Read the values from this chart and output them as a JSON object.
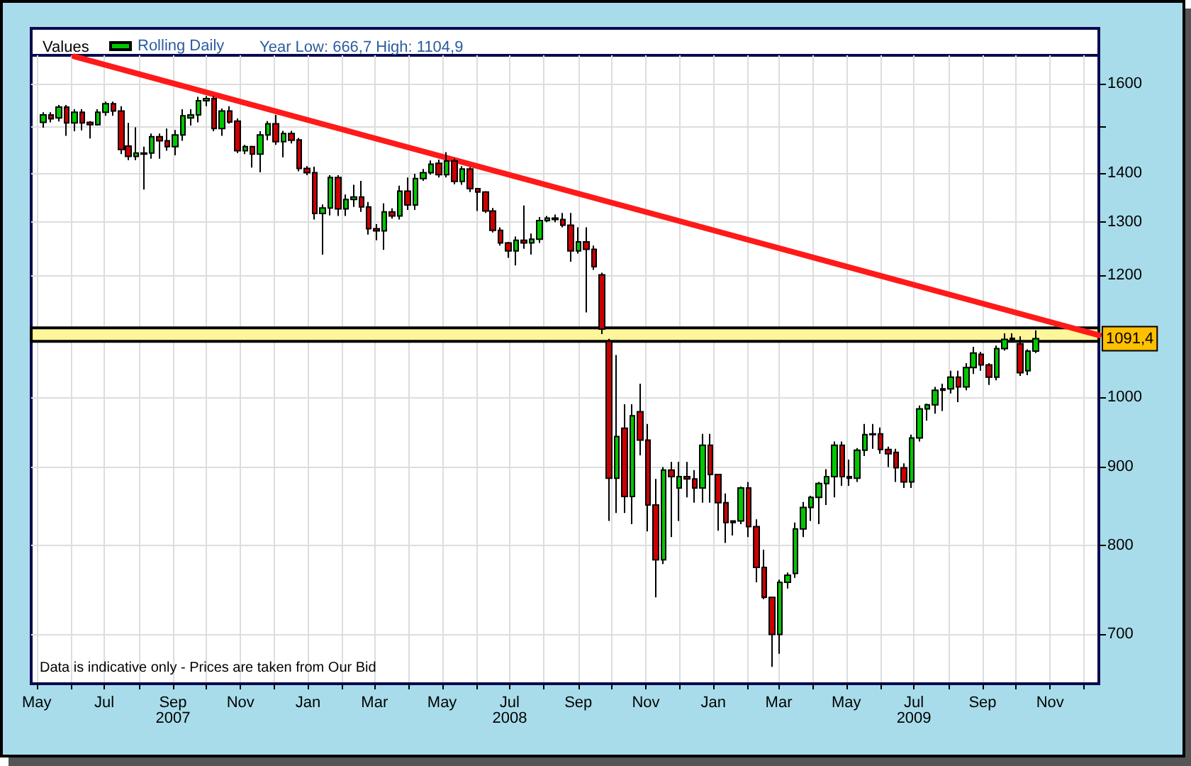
{
  "chart_data": {
    "type": "candlestick",
    "ylabel": "Values",
    "subtitle": "Year Low: 666,7 High: 1104,9",
    "log": "y",
    "grid": true,
    "legend": "top left",
    "xlim": [
      "2007-04-26",
      "2009-12-15"
    ],
    "ylim": [
      650,
      1670
    ],
    "xticks": [
      {
        "value": "2007-05-01",
        "label": "May"
      },
      {
        "value": "2007-06-01",
        "label": null
      },
      {
        "value": "2007-07-01",
        "label": "Jul"
      },
      {
        "value": "2007-08-01",
        "label": null
      },
      {
        "value": "2007-09-01",
        "label": "Sep\n2007"
      },
      {
        "value": "2007-10-01",
        "label": null
      },
      {
        "value": "2007-11-01",
        "label": "Nov"
      },
      {
        "value": "2007-12-01",
        "label": null
      },
      {
        "value": "2008-01-01",
        "label": "Jan"
      },
      {
        "value": "2008-02-01",
        "label": null
      },
      {
        "value": "2008-03-01",
        "label": "Mar"
      },
      {
        "value": "2008-04-01",
        "label": null
      },
      {
        "value": "2008-05-01",
        "label": "May"
      },
      {
        "value": "2008-06-01",
        "label": null
      },
      {
        "value": "2008-07-01",
        "label": "Jul\n2008"
      },
      {
        "value": "2008-08-01",
        "label": null
      },
      {
        "value": "2008-09-01",
        "label": "Sep"
      },
      {
        "value": "2008-10-01",
        "label": null
      },
      {
        "value": "2008-11-01",
        "label": "Nov"
      },
      {
        "value": "2008-12-01",
        "label": null
      },
      {
        "value": "2009-01-01",
        "label": "Jan"
      },
      {
        "value": "2009-02-01",
        "label": null
      },
      {
        "value": "2009-03-01",
        "label": "Mar"
      },
      {
        "value": "2009-04-01",
        "label": null
      },
      {
        "value": "2009-05-01",
        "label": "May"
      },
      {
        "value": "2009-06-01",
        "label": null
      },
      {
        "value": "2009-07-01",
        "label": "Jul\n2009"
      },
      {
        "value": "2009-08-01",
        "label": null
      },
      {
        "value": "2009-09-01",
        "label": "Sep"
      },
      {
        "value": "2009-10-01",
        "label": null
      },
      {
        "value": "2009-11-01",
        "label": "Nov"
      },
      {
        "value": "2009-12-01",
        "label": null
      }
    ],
    "yticks": [
      700,
      800,
      900,
      1000,
      {
        "value": 1100,
        "label": null
      },
      1200,
      1300,
      1400,
      {
        "value": 1500,
        "label": null
      },
      1600
    ],
    "bands": [
      {
        "axis": "y",
        "from": 1087,
        "to": 1109,
        "color": "#fff59a"
      }
    ],
    "annotations": [
      {
        "text": "1091,4",
        "y": 1091.4
      },
      "Data is indicative only - Prices are taken from Our Bid"
    ],
    "series": [
      {
        "name": "Rolling Daily",
        "x": [
          "2007-05-07",
          "2007-05-14",
          "2007-05-21",
          "2007-05-28",
          "2007-06-04",
          "2007-06-11",
          "2007-06-18",
          "2007-06-25",
          "2007-07-02",
          "2007-07-09",
          "2007-07-16",
          "2007-07-23",
          "2007-07-30",
          "2007-08-06",
          "2007-08-13",
          "2007-08-20",
          "2007-08-27",
          "2007-09-03",
          "2007-09-10",
          "2007-09-17",
          "2007-09-24",
          "2007-10-01",
          "2007-10-08",
          "2007-10-15",
          "2007-10-22",
          "2007-10-29",
          "2007-11-05",
          "2007-11-12",
          "2007-11-19",
          "2007-11-26",
          "2007-12-03",
          "2007-12-10",
          "2007-12-17",
          "2007-12-24",
          "2007-12-31",
          "2008-01-07",
          "2008-01-14",
          "2008-01-21",
          "2008-01-28",
          "2008-02-04",
          "2008-02-11",
          "2008-02-18",
          "2008-02-25",
          "2008-03-03",
          "2008-03-10",
          "2008-03-17",
          "2008-03-24",
          "2008-03-31",
          "2008-04-07",
          "2008-04-14",
          "2008-04-21",
          "2008-04-28",
          "2008-05-05",
          "2008-05-12",
          "2008-05-19",
          "2008-05-26",
          "2008-06-02",
          "2008-06-09",
          "2008-06-16",
          "2008-06-23",
          "2008-06-30",
          "2008-07-07",
          "2008-07-14",
          "2008-07-21",
          "2008-07-28",
          "2008-08-04",
          "2008-08-11",
          "2008-08-18",
          "2008-08-25",
          "2008-09-01",
          "2008-09-08",
          "2008-09-15",
          "2008-09-22",
          "2008-09-29",
          "2008-10-06",
          "2008-10-13",
          "2008-10-20",
          "2008-10-27",
          "2008-11-03",
          "2008-11-10",
          "2008-11-17",
          "2008-11-24",
          "2008-12-01",
          "2008-12-08",
          "2008-12-15",
          "2008-12-22",
          "2008-12-29",
          "2009-01-05",
          "2009-01-12",
          "2009-01-19",
          "2009-01-26",
          "2009-02-02",
          "2009-02-09",
          "2009-02-16",
          "2009-02-23",
          "2009-03-02",
          "2009-03-09",
          "2009-03-16",
          "2009-03-23",
          "2009-03-30",
          "2009-04-06",
          "2009-04-13",
          "2009-04-20",
          "2009-04-27",
          "2009-05-04",
          "2009-05-11",
          "2009-05-18",
          "2009-05-25",
          "2009-06-01",
          "2009-06-08",
          "2009-06-15",
          "2009-06-22",
          "2009-06-29",
          "2009-07-06",
          "2009-07-13",
          "2009-07-20",
          "2009-07-27",
          "2009-08-03",
          "2009-08-10",
          "2009-08-17",
          "2009-08-24",
          "2009-08-31",
          "2009-09-07",
          "2009-09-14",
          "2009-09-21",
          "2009-09-28",
          "2009-10-05",
          "2009-10-12",
          "2009-10-19"
        ],
        "ohlc": [
          [
            1510,
            1533,
            1498,
            1527
          ],
          [
            1527,
            1533,
            1510,
            1518
          ],
          [
            1520,
            1550,
            1512,
            1545
          ],
          [
            1545,
            1550,
            1480,
            1509
          ],
          [
            1509,
            1540,
            1490,
            1533
          ],
          [
            1533,
            1540,
            1492,
            1509
          ],
          [
            1510,
            1513,
            1474,
            1505
          ],
          [
            1505,
            1540,
            1503,
            1533
          ],
          [
            1533,
            1558,
            1525,
            1553
          ],
          [
            1553,
            1558,
            1525,
            1536
          ],
          [
            1536,
            1547,
            1440,
            1450
          ],
          [
            1457,
            1509,
            1427,
            1435
          ],
          [
            1435,
            1499,
            1427,
            1442
          ],
          [
            1442,
            1456,
            1365,
            1440
          ],
          [
            1442,
            1485,
            1430,
            1478
          ],
          [
            1478,
            1485,
            1430,
            1469
          ],
          [
            1469,
            1496,
            1447,
            1456
          ],
          [
            1456,
            1493,
            1437,
            1482
          ],
          [
            1482,
            1540,
            1469,
            1525
          ],
          [
            1520,
            1540,
            1503,
            1527
          ],
          [
            1527,
            1569,
            1510,
            1560
          ],
          [
            1560,
            1571,
            1547,
            1565
          ],
          [
            1565,
            1571,
            1490,
            1496
          ],
          [
            1496,
            1542,
            1480,
            1536
          ],
          [
            1536,
            1547,
            1507,
            1511
          ],
          [
            1513,
            1519,
            1442,
            1447
          ],
          [
            1447,
            1460,
            1440,
            1456
          ],
          [
            1456,
            1458,
            1411,
            1440
          ],
          [
            1440,
            1490,
            1401,
            1482
          ],
          [
            1482,
            1513,
            1470,
            1507
          ],
          [
            1507,
            1527,
            1460,
            1467
          ],
          [
            1467,
            1491,
            1433,
            1485
          ],
          [
            1485,
            1491,
            1463,
            1470
          ],
          [
            1471,
            1475,
            1403,
            1409
          ],
          [
            1409,
            1414,
            1395,
            1400
          ],
          [
            1400,
            1413,
            1305,
            1317
          ],
          [
            1317,
            1335,
            1238,
            1328
          ],
          [
            1328,
            1395,
            1313,
            1390
          ],
          [
            1390,
            1395,
            1312,
            1326
          ],
          [
            1326,
            1355,
            1312,
            1345
          ],
          [
            1345,
            1375,
            1330,
            1350
          ],
          [
            1350,
            1383,
            1320,
            1330
          ],
          [
            1330,
            1340,
            1276,
            1287
          ],
          [
            1287,
            1296,
            1265,
            1283
          ],
          [
            1283,
            1337,
            1247,
            1320
          ],
          [
            1320,
            1327,
            1307,
            1312
          ],
          [
            1312,
            1373,
            1305,
            1362
          ],
          [
            1362,
            1390,
            1324,
            1334
          ],
          [
            1334,
            1398,
            1324,
            1388
          ],
          [
            1388,
            1408,
            1383,
            1400
          ],
          [
            1400,
            1426,
            1396,
            1418
          ],
          [
            1420,
            1428,
            1390,
            1396
          ],
          [
            1396,
            1444,
            1390,
            1425
          ],
          [
            1425,
            1430,
            1376,
            1382
          ],
          [
            1382,
            1414,
            1375,
            1408
          ],
          [
            1408,
            1412,
            1360,
            1367
          ],
          [
            1367,
            1367,
            1322,
            1360
          ],
          [
            1360,
            1362,
            1318,
            1322
          ],
          [
            1322,
            1328,
            1280,
            1284
          ],
          [
            1284,
            1290,
            1255,
            1260
          ],
          [
            1260,
            1262,
            1232,
            1245
          ],
          [
            1245,
            1272,
            1218,
            1265
          ],
          [
            1265,
            1333,
            1249,
            1260
          ],
          [
            1260,
            1278,
            1238,
            1267
          ],
          [
            1267,
            1310,
            1260,
            1303
          ],
          [
            1303,
            1312,
            1300,
            1308
          ],
          [
            1308,
            1315,
            1300,
            1305
          ],
          [
            1305,
            1318,
            1290,
            1294
          ],
          [
            1294,
            1318,
            1225,
            1245
          ],
          [
            1245,
            1290,
            1240,
            1262
          ],
          [
            1262,
            1290,
            1135,
            1248
          ],
          [
            1248,
            1255,
            1210,
            1216
          ],
          [
            1201,
            1205,
            1099,
            1107
          ],
          [
            1087,
            1091,
            830,
            885
          ],
          [
            885,
            1065,
            840,
            942
          ],
          [
            954,
            989,
            840,
            861
          ],
          [
            861,
            989,
            826,
            972
          ],
          [
            978,
            1020,
            916,
            937
          ],
          [
            937,
            960,
            817,
            850
          ],
          [
            850,
            884,
            740,
            783
          ],
          [
            783,
            900,
            778,
            896
          ],
          [
            896,
            907,
            810,
            887
          ],
          [
            872,
            907,
            830,
            887
          ],
          [
            887,
            907,
            860,
            884
          ],
          [
            884,
            896,
            853,
            872
          ],
          [
            872,
            946,
            853,
            930
          ],
          [
            930,
            946,
            853,
            890
          ],
          [
            890,
            890,
            818,
            853
          ],
          [
            853,
            865,
            803,
            828
          ],
          [
            830,
            830,
            812,
            828
          ],
          [
            830,
            874,
            826,
            872
          ],
          [
            872,
            880,
            810,
            823
          ],
          [
            823,
            832,
            757,
            774
          ],
          [
            774,
            795,
            738,
            740
          ],
          [
            740,
            740,
            666.7,
            700
          ],
          [
            700,
            760,
            680,
            757
          ],
          [
            757,
            768,
            750,
            765
          ],
          [
            767,
            828,
            762,
            820
          ],
          [
            820,
            854,
            810,
            847
          ],
          [
            847,
            862,
            830,
            860
          ],
          [
            860,
            880,
            826,
            878
          ],
          [
            878,
            897,
            850,
            887
          ],
          [
            887,
            935,
            860,
            930
          ],
          [
            930,
            935,
            875,
            887
          ],
          [
            887,
            910,
            875,
            885
          ],
          [
            885,
            926,
            880,
            923
          ],
          [
            923,
            960,
            915,
            945
          ],
          [
            945,
            960,
            925,
            946
          ],
          [
            946,
            955,
            918,
            924
          ],
          [
            924,
            928,
            900,
            918
          ],
          [
            920,
            925,
            880,
            899
          ],
          [
            899,
            905,
            872,
            880
          ],
          [
            880,
            945,
            872,
            940
          ],
          [
            940,
            987,
            935,
            982
          ],
          [
            982,
            990,
            965,
            988
          ],
          [
            988,
            1015,
            975,
            1010
          ],
          [
            1010,
            1020,
            979,
            1012
          ],
          [
            1012,
            1040,
            1005,
            1030
          ],
          [
            1030,
            1040,
            992,
            1015
          ],
          [
            1015,
            1052,
            1010,
            1045
          ],
          [
            1045,
            1078,
            1035,
            1068
          ],
          [
            1066,
            1070,
            1040,
            1049
          ],
          [
            1049,
            1052,
            1018,
            1030
          ],
          [
            1030,
            1080,
            1025,
            1075
          ],
          [
            1075,
            1100,
            1072,
            1090
          ],
          [
            1090,
            1100,
            1085,
            1092
          ],
          [
            1083,
            1095,
            1032,
            1037
          ],
          [
            1040,
            1074,
            1033,
            1071
          ],
          [
            1071,
            1104.9,
            1068,
            1091.4
          ]
        ]
      },
      {
        "type": "line",
        "color": "#ff1a1a",
        "marker": "none",
        "line_style": "solid",
        "x": [
          "2007-06-04",
          "2009-12-15"
        ],
        "values": [
          1667,
          1097
        ]
      }
    ]
  }
}
